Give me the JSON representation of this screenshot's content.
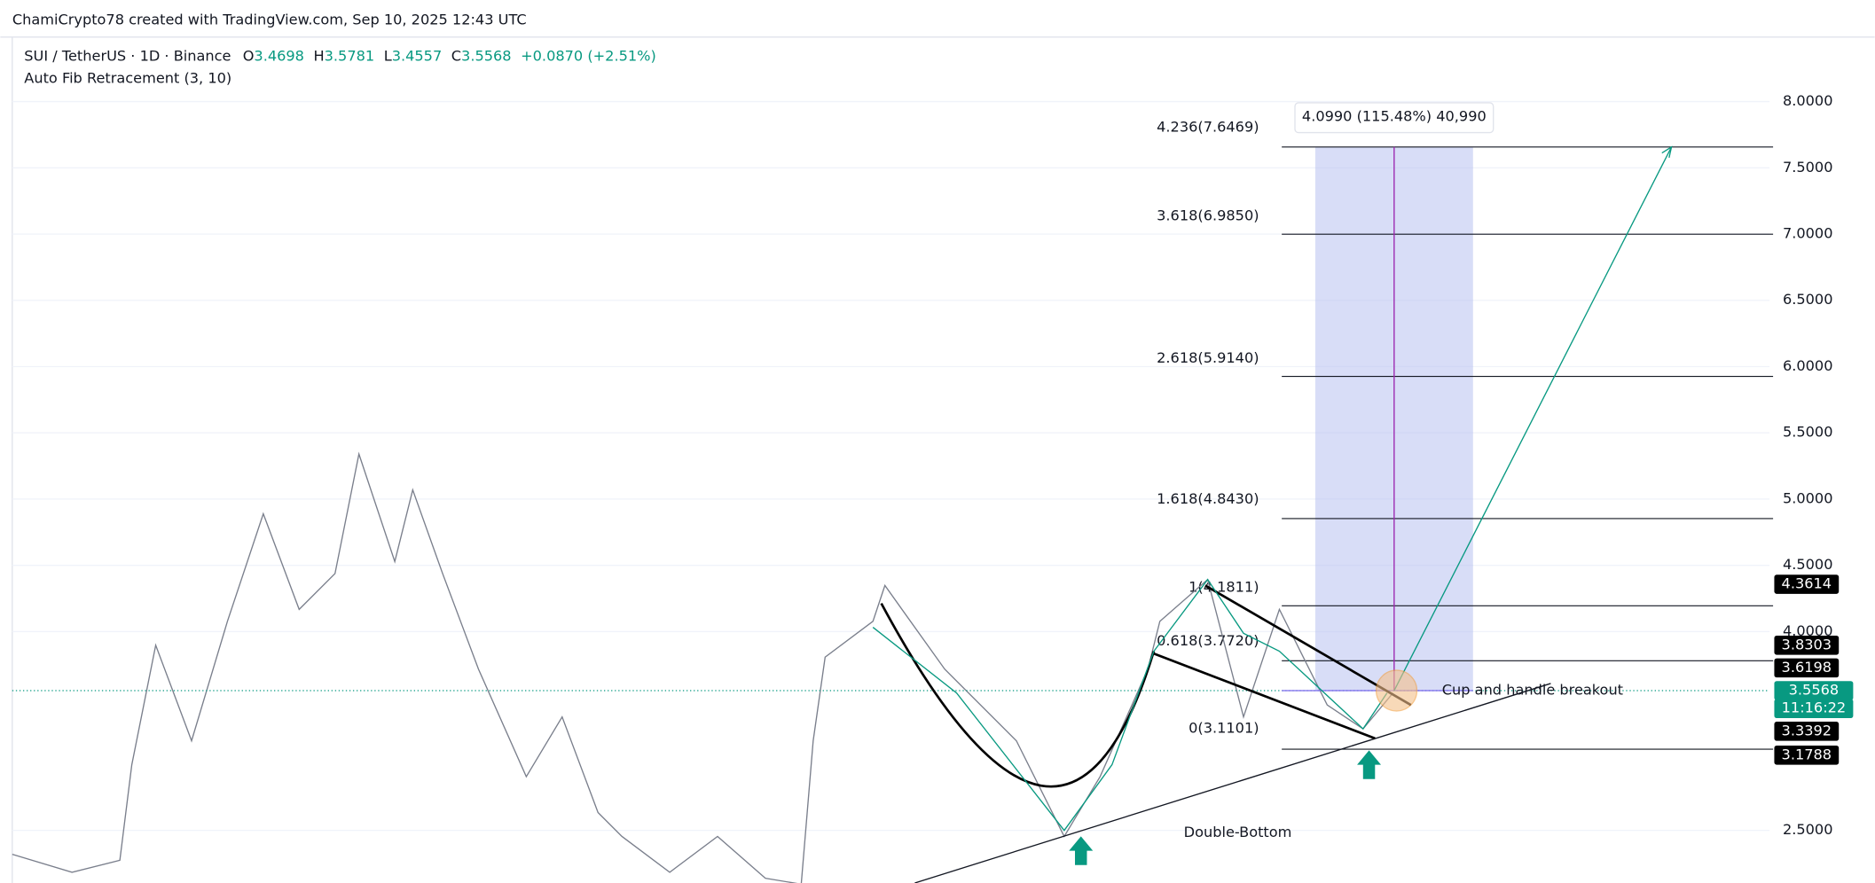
{
  "header": {
    "title": "ChamiCrypto78 created with TradingView.com, Sep 10, 2025 12:43 UTC"
  },
  "legend": {
    "symbol": "SUI / TetherUS · 1D · Binance",
    "open_label": "O",
    "open": "3.4698",
    "high_label": "H",
    "high": "3.5781",
    "low_label": "L",
    "low": "3.4557",
    "close_label": "C",
    "close": "3.5568",
    "change": "+0.0870 (+2.51%)",
    "indicator": "Auto Fib Retracement (3, 10)"
  },
  "price_axis": [
    "8.0000",
    "7.5000",
    "7.0000",
    "6.5000",
    "6.0000",
    "5.5000",
    "5.0000",
    "4.5000",
    "4.0000",
    "2.5000"
  ],
  "badges": [
    "4.3614",
    "3.8303",
    "3.6198",
    "3.5568",
    "11:16:22",
    "3.3392",
    "3.1788"
  ],
  "fib_levels": [
    "4.236(7.6469)",
    "3.618(6.9850)",
    "2.618(5.9140)",
    "1.618(4.8430)",
    "1(4.1811)",
    "0.618(3.7720)",
    "0(3.1101)"
  ],
  "measure": "4.0990 (115.48%) 40,990",
  "annotations": [
    "Cup and handle breakout",
    "Double-Bottom"
  ]
}
